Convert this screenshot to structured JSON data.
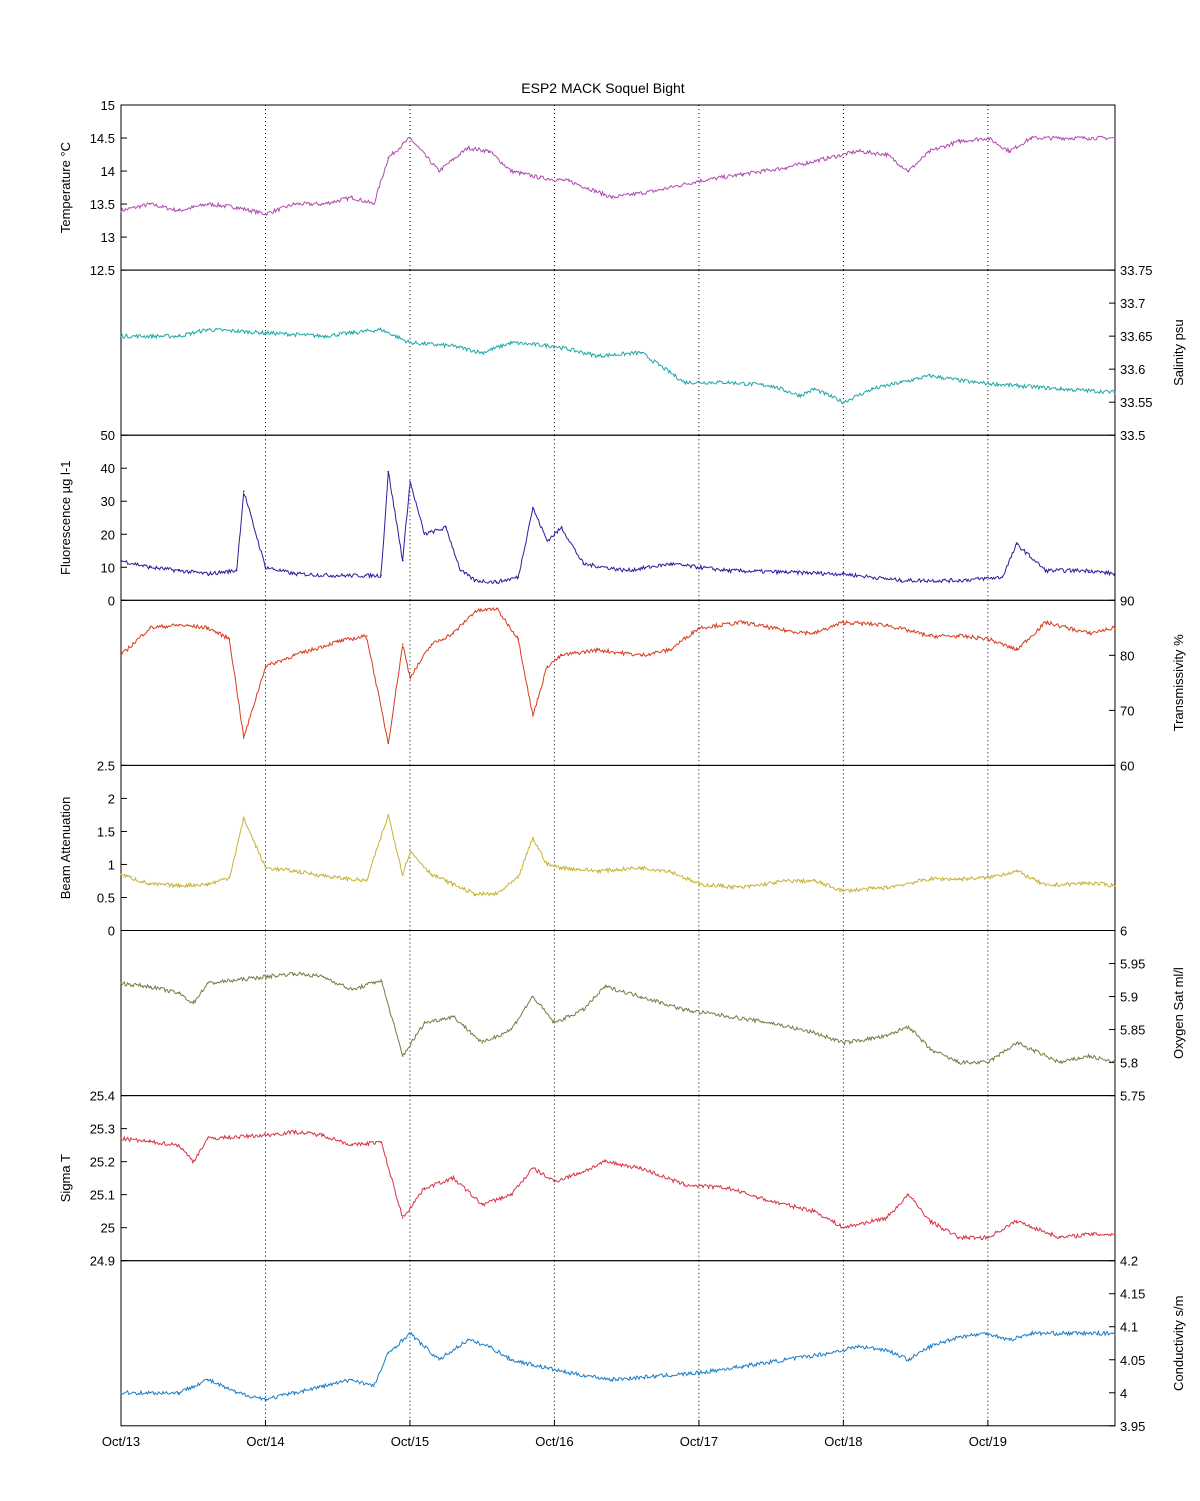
{
  "chart_data": {
    "type": "line",
    "title": "ESP2 MACK  Soquel Bight",
    "x_tick_labels": [
      "Oct/13",
      "Oct/14",
      "Oct/15",
      "Oct/16",
      "Oct/17",
      "Oct/18",
      "Oct/19"
    ],
    "x_range_days": [
      13,
      19.88
    ],
    "grid": "vertical dotted at day ticks",
    "panels": [
      {
        "ylabel": "Temperature °C",
        "ylabel_side": "left",
        "ylim": [
          12.5,
          15
        ],
        "ticks": [
          12.5,
          13,
          13.5,
          14,
          14.5,
          15
        ],
        "tick_labels": [
          "12.5",
          "13",
          "13.5",
          "14",
          "14.5",
          "15"
        ],
        "label_edge_ticks": true,
        "color": "#b04cb0",
        "x": [
          13.0,
          13.2,
          13.4,
          13.5,
          13.6,
          13.8,
          14.0,
          14.2,
          14.4,
          14.6,
          14.75,
          14.85,
          15.0,
          15.2,
          15.4,
          15.55,
          15.7,
          15.9,
          16.1,
          16.4,
          16.7,
          17.0,
          17.3,
          17.6,
          17.9,
          18.1,
          18.3,
          18.45,
          18.6,
          18.8,
          19.0,
          19.15,
          19.3,
          19.5,
          19.7,
          19.88
        ],
        "y": [
          13.4,
          13.5,
          13.4,
          13.45,
          13.5,
          13.45,
          13.35,
          13.5,
          13.5,
          13.6,
          13.5,
          14.2,
          14.5,
          14.0,
          14.35,
          14.3,
          14.0,
          13.9,
          13.85,
          13.6,
          13.7,
          13.85,
          13.95,
          14.05,
          14.2,
          14.3,
          14.25,
          14.0,
          14.3,
          14.45,
          14.5,
          14.3,
          14.5,
          14.5,
          14.5,
          14.5
        ]
      },
      {
        "ylabel": "Salinity psu",
        "ylabel_side": "right",
        "ylim": [
          33.5,
          33.75
        ],
        "ticks": [
          33.5,
          33.55,
          33.6,
          33.65,
          33.7,
          33.75
        ],
        "tick_labels": [
          "33.5",
          "33.55",
          "33.6",
          "33.65",
          "33.7",
          "33.75"
        ],
        "label_edge_ticks": true,
        "color": "#1fa8a8",
        "x": [
          13.0,
          13.4,
          13.6,
          14.0,
          14.4,
          14.8,
          15.0,
          15.3,
          15.5,
          15.7,
          16.0,
          16.3,
          16.6,
          16.9,
          17.2,
          17.5,
          17.7,
          17.8,
          18.0,
          18.2,
          18.4,
          18.6,
          18.9,
          19.2,
          19.5,
          19.88
        ],
        "y": [
          33.65,
          33.65,
          33.66,
          33.655,
          33.65,
          33.66,
          33.64,
          33.635,
          33.625,
          33.64,
          33.635,
          33.62,
          33.625,
          33.58,
          33.58,
          33.575,
          33.56,
          33.57,
          33.55,
          33.57,
          33.58,
          33.59,
          33.58,
          33.575,
          33.57,
          33.565
        ]
      },
      {
        "ylabel": "Fluorescence µg l-1",
        "ylabel_side": "left",
        "ylim": [
          0,
          50
        ],
        "ticks": [
          0,
          10,
          20,
          30,
          40,
          50
        ],
        "tick_labels": [
          "0",
          "10",
          "20",
          "30",
          "40",
          "50"
        ],
        "label_edge_ticks": true,
        "color": "#2a1f9e",
        "x": [
          13.0,
          13.2,
          13.4,
          13.6,
          13.8,
          13.85,
          14.0,
          14.2,
          14.5,
          14.8,
          14.85,
          14.95,
          15.0,
          15.1,
          15.25,
          15.35,
          15.45,
          15.6,
          15.75,
          15.85,
          15.95,
          16.05,
          16.2,
          16.5,
          16.8,
          17.2,
          17.6,
          18.0,
          18.4,
          18.8,
          19.1,
          19.2,
          19.4,
          19.7,
          19.88
        ],
        "y": [
          12,
          10,
          9,
          8,
          9,
          33,
          10,
          8,
          7.5,
          7.5,
          39,
          12,
          36,
          20,
          22,
          9,
          6,
          5.5,
          7,
          28,
          18,
          22,
          11,
          9,
          11,
          9,
          8.5,
          8,
          6,
          6,
          7,
          17,
          9,
          9,
          8
        ]
      },
      {
        "ylabel": "Transmissivity %",
        "ylabel_side": "right",
        "ylim": [
          60,
          90
        ],
        "ticks": [
          60,
          70,
          80,
          90
        ],
        "tick_labels": [
          "60",
          "70",
          "80",
          "90"
        ],
        "label_edge_ticks": true,
        "color": "#d63c1c",
        "x": [
          13.0,
          13.2,
          13.4,
          13.6,
          13.75,
          13.85,
          14.0,
          14.2,
          14.5,
          14.7,
          14.85,
          14.95,
          15.0,
          15.15,
          15.3,
          15.45,
          15.6,
          15.75,
          15.85,
          15.95,
          16.05,
          16.3,
          16.6,
          16.8,
          17.0,
          17.3,
          17.6,
          17.8,
          18.0,
          18.3,
          18.6,
          18.8,
          19.0,
          19.2,
          19.4,
          19.7,
          19.88
        ],
        "y": [
          80,
          85,
          85.5,
          85,
          83,
          65,
          78,
          80,
          82.5,
          83.5,
          64,
          82,
          76,
          82,
          84,
          88,
          88.5,
          83,
          69,
          78,
          80,
          81,
          80,
          81,
          85,
          86,
          84.5,
          84,
          86,
          85.5,
          83.5,
          83.5,
          83,
          81,
          86,
          84,
          85
        ]
      },
      {
        "ylabel": "Beam Attenuation",
        "ylabel_side": "left",
        "ylim": [
          0,
          2.5
        ],
        "ticks": [
          0,
          0.5,
          1,
          1.5,
          2,
          2.5
        ],
        "tick_labels": [
          "0",
          "0.5",
          "1",
          "1.5",
          "2",
          "2.5"
        ],
        "label_edge_ticks": true,
        "color": "#c8b236",
        "x": [
          13.0,
          13.2,
          13.4,
          13.6,
          13.75,
          13.85,
          14.0,
          14.2,
          14.5,
          14.7,
          14.85,
          14.95,
          15.0,
          15.15,
          15.3,
          15.45,
          15.6,
          15.75,
          15.85,
          15.95,
          16.05,
          16.3,
          16.6,
          16.8,
          17.0,
          17.3,
          17.6,
          17.8,
          18.0,
          18.3,
          18.6,
          18.8,
          19.0,
          19.2,
          19.4,
          19.7,
          19.88
        ],
        "y": [
          0.85,
          0.7,
          0.68,
          0.7,
          0.8,
          1.7,
          0.95,
          0.9,
          0.8,
          0.75,
          1.75,
          0.85,
          1.2,
          0.85,
          0.7,
          0.55,
          0.55,
          0.8,
          1.4,
          1.0,
          0.95,
          0.9,
          0.95,
          0.9,
          0.7,
          0.65,
          0.75,
          0.75,
          0.6,
          0.65,
          0.78,
          0.78,
          0.8,
          0.9,
          0.68,
          0.72,
          0.68
        ]
      },
      {
        "ylabel": "Oxygen Sat ml/l",
        "ylabel_side": "right",
        "ylim": [
          5.75,
          6.0
        ],
        "ticks": [
          5.75,
          5.8,
          5.85,
          5.9,
          5.95,
          6.0
        ],
        "tick_labels": [
          "5.75",
          "5.8",
          "5.85",
          "5.9",
          "5.95",
          "6"
        ],
        "label_edge_ticks": true,
        "color": "#7c7a44",
        "x": [
          13.0,
          13.2,
          13.4,
          13.5,
          13.6,
          14.0,
          14.2,
          14.4,
          14.6,
          14.8,
          14.95,
          15.1,
          15.3,
          15.5,
          15.7,
          15.85,
          16.0,
          16.2,
          16.35,
          16.6,
          16.9,
          17.2,
          17.5,
          17.8,
          18.0,
          18.3,
          18.45,
          18.6,
          18.8,
          19.0,
          19.2,
          19.5,
          19.7,
          19.88
        ],
        "y": [
          5.92,
          5.915,
          5.905,
          5.89,
          5.92,
          5.93,
          5.935,
          5.93,
          5.91,
          5.925,
          5.81,
          5.86,
          5.87,
          5.83,
          5.85,
          5.9,
          5.86,
          5.88,
          5.915,
          5.9,
          5.88,
          5.87,
          5.86,
          5.845,
          5.83,
          5.84,
          5.855,
          5.82,
          5.8,
          5.8,
          5.83,
          5.8,
          5.81,
          5.8
        ]
      },
      {
        "ylabel": "Sigma T",
        "ylabel_side": "left",
        "ylim": [
          24.9,
          25.4
        ],
        "ticks": [
          24.9,
          25.0,
          25.1,
          25.2,
          25.3,
          25.4
        ],
        "tick_labels": [
          "24.9",
          "25",
          "25.1",
          "25.2",
          "25.3",
          "25.4"
        ],
        "label_edge_ticks": true,
        "color": "#d83448",
        "x": [
          13.0,
          13.2,
          13.4,
          13.5,
          13.6,
          14.0,
          14.2,
          14.4,
          14.6,
          14.8,
          14.95,
          15.1,
          15.3,
          15.5,
          15.7,
          15.85,
          16.0,
          16.2,
          16.35,
          16.6,
          16.9,
          17.2,
          17.5,
          17.8,
          18.0,
          18.3,
          18.45,
          18.6,
          18.8,
          19.0,
          19.2,
          19.5,
          19.7,
          19.88
        ],
        "y": [
          25.27,
          25.26,
          25.25,
          25.2,
          25.27,
          25.28,
          25.29,
          25.28,
          25.25,
          25.26,
          25.03,
          25.12,
          25.15,
          25.07,
          25.1,
          25.18,
          25.14,
          25.17,
          25.2,
          25.18,
          25.13,
          25.12,
          25.08,
          25.05,
          25.0,
          25.03,
          25.1,
          25.02,
          24.97,
          24.97,
          25.02,
          24.97,
          24.98,
          24.98
        ]
      },
      {
        "ylabel": "Conductivity s/m",
        "ylabel_side": "right",
        "ylim": [
          3.95,
          4.2
        ],
        "ticks": [
          3.95,
          4.0,
          4.05,
          4.1,
          4.15,
          4.2
        ],
        "tick_labels": [
          "3.95",
          "4",
          "4.05",
          "4.1",
          "4.15",
          "4.2"
        ],
        "label_edge_ticks": true,
        "color": "#1c7ec8",
        "x": [
          13.0,
          13.2,
          13.4,
          13.5,
          13.6,
          13.8,
          14.0,
          14.2,
          14.4,
          14.6,
          14.75,
          14.85,
          15.0,
          15.2,
          15.4,
          15.55,
          15.7,
          15.9,
          16.1,
          16.4,
          16.7,
          17.0,
          17.3,
          17.6,
          17.9,
          18.1,
          18.3,
          18.45,
          18.6,
          18.8,
          19.0,
          19.15,
          19.3,
          19.5,
          19.7,
          19.88
        ],
        "y": [
          4.0,
          4.0,
          4.0,
          4.01,
          4.02,
          4.0,
          3.99,
          4.0,
          4.01,
          4.02,
          4.01,
          4.06,
          4.09,
          4.05,
          4.08,
          4.07,
          4.05,
          4.04,
          4.03,
          4.02,
          4.025,
          4.03,
          4.04,
          4.05,
          4.06,
          4.07,
          4.065,
          4.05,
          4.07,
          4.085,
          4.09,
          4.08,
          4.09,
          4.09,
          4.09,
          4.09
        ]
      }
    ]
  }
}
